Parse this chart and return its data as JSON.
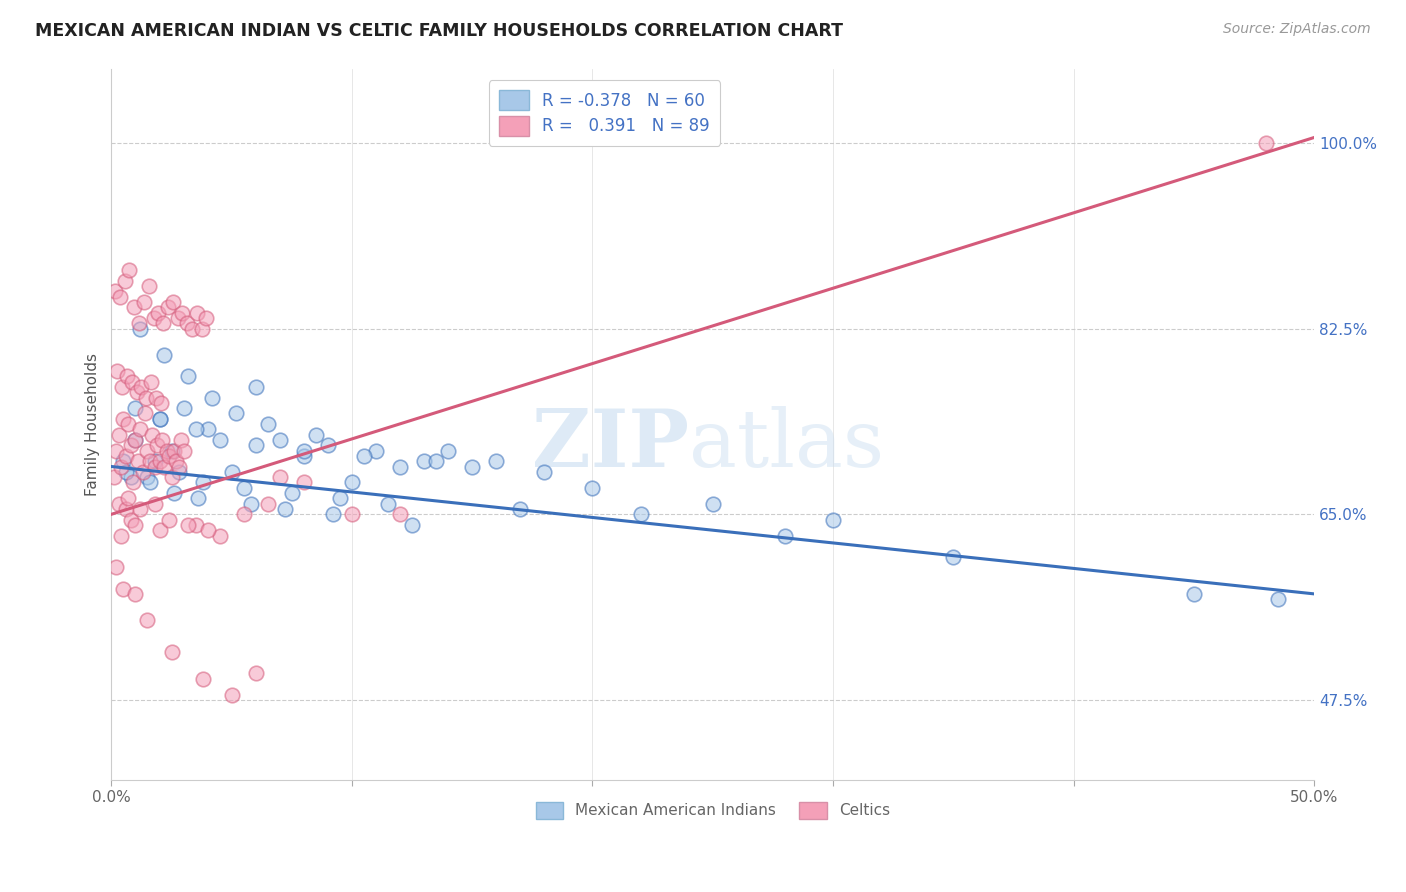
{
  "title": "MEXICAN AMERICAN INDIAN VS CELTIC FAMILY HOUSEHOLDS CORRELATION CHART",
  "source": "Source: ZipAtlas.com",
  "ylabel": "Family Households",
  "legend_label1": "Mexican American Indians",
  "legend_label2": "Celtics",
  "color_blue": "#a8c8e8",
  "color_pink": "#f4a0b8",
  "line_blue": "#3a6fba",
  "line_pink": "#d45a7a",
  "watermark_zip": "ZIP",
  "watermark_atlas": "atlas",
  "bg_color": "#ffffff",
  "x_min": 0.0,
  "x_max": 50.0,
  "y_min": 40.0,
  "y_max": 107.0,
  "y_ticks": [
    47.5,
    65.0,
    82.5,
    100.0
  ],
  "R_blue": -0.378,
  "N_blue": 60,
  "R_pink": 0.391,
  "N_pink": 89,
  "blue_scatter_x": [
    0.5,
    1.0,
    1.5,
    2.0,
    2.5,
    3.0,
    4.0,
    5.0,
    6.0,
    7.0,
    8.0,
    9.0,
    10.0,
    12.0,
    14.0,
    16.0,
    18.0,
    20.0,
    25.0,
    30.0,
    1.2,
    2.2,
    3.2,
    4.2,
    5.2,
    6.5,
    8.5,
    11.0,
    13.0,
    15.0,
    0.8,
    1.8,
    2.8,
    3.8,
    5.5,
    7.5,
    9.5,
    11.5,
    17.0,
    22.0,
    1.0,
    2.0,
    3.5,
    4.5,
    6.0,
    8.0,
    10.5,
    13.5,
    28.0,
    35.0,
    0.6,
    1.6,
    2.6,
    3.6,
    5.8,
    7.2,
    9.2,
    12.5,
    45.0,
    48.5
  ],
  "blue_scatter_y": [
    70.0,
    72.0,
    68.5,
    74.0,
    71.0,
    75.0,
    73.0,
    69.0,
    77.0,
    72.0,
    70.5,
    71.5,
    68.0,
    69.5,
    71.0,
    70.0,
    69.0,
    67.5,
    66.0,
    64.5,
    82.5,
    80.0,
    78.0,
    76.0,
    74.5,
    73.5,
    72.5,
    71.0,
    70.0,
    69.5,
    68.5,
    70.0,
    69.0,
    68.0,
    67.5,
    67.0,
    66.5,
    66.0,
    65.5,
    65.0,
    75.0,
    74.0,
    73.0,
    72.0,
    71.5,
    71.0,
    70.5,
    70.0,
    63.0,
    61.0,
    69.0,
    68.0,
    67.0,
    66.5,
    66.0,
    65.5,
    65.0,
    64.0,
    57.5,
    57.0
  ],
  "pink_scatter_x": [
    0.1,
    0.2,
    0.3,
    0.4,
    0.5,
    0.6,
    0.7,
    0.8,
    0.9,
    1.0,
    1.1,
    1.2,
    1.3,
    1.4,
    1.5,
    1.6,
    1.7,
    1.8,
    1.9,
    2.0,
    2.1,
    2.2,
    2.3,
    2.4,
    2.5,
    2.6,
    2.7,
    2.8,
    2.9,
    3.0,
    0.15,
    0.35,
    0.55,
    0.75,
    0.95,
    1.15,
    1.35,
    1.55,
    1.75,
    1.95,
    2.15,
    2.35,
    2.55,
    2.75,
    2.95,
    3.15,
    3.35,
    3.55,
    3.75,
    3.95,
    0.25,
    0.45,
    0.65,
    0.85,
    1.05,
    1.25,
    1.45,
    1.65,
    1.85,
    2.05,
    0.3,
    0.6,
    0.8,
    1.0,
    2.0,
    3.5,
    4.5,
    5.5,
    7.0,
    10.0,
    0.4,
    0.7,
    1.2,
    1.8,
    2.4,
    3.2,
    4.0,
    6.5,
    8.0,
    12.0,
    0.2,
    0.5,
    1.0,
    1.5,
    2.5,
    3.8,
    5.0,
    6.0,
    48.0
  ],
  "pink_scatter_y": [
    68.5,
    71.0,
    72.5,
    69.5,
    74.0,
    70.5,
    73.5,
    71.5,
    68.0,
    72.0,
    70.0,
    73.0,
    69.0,
    74.5,
    71.0,
    70.0,
    72.5,
    69.5,
    71.5,
    70.0,
    72.0,
    69.5,
    71.0,
    70.5,
    68.5,
    71.0,
    70.0,
    69.5,
    72.0,
    71.0,
    86.0,
    85.5,
    87.0,
    88.0,
    84.5,
    83.0,
    85.0,
    86.5,
    83.5,
    84.0,
    83.0,
    84.5,
    85.0,
    83.5,
    84.0,
    83.0,
    82.5,
    84.0,
    82.5,
    83.5,
    78.5,
    77.0,
    78.0,
    77.5,
    76.5,
    77.0,
    76.0,
    77.5,
    76.0,
    75.5,
    66.0,
    65.5,
    64.5,
    64.0,
    63.5,
    64.0,
    63.0,
    65.0,
    68.5,
    65.0,
    63.0,
    66.5,
    65.5,
    66.0,
    64.5,
    64.0,
    63.5,
    66.0,
    68.0,
    65.0,
    60.0,
    58.0,
    57.5,
    55.0,
    52.0,
    49.5,
    48.0,
    50.0,
    100.0
  ]
}
